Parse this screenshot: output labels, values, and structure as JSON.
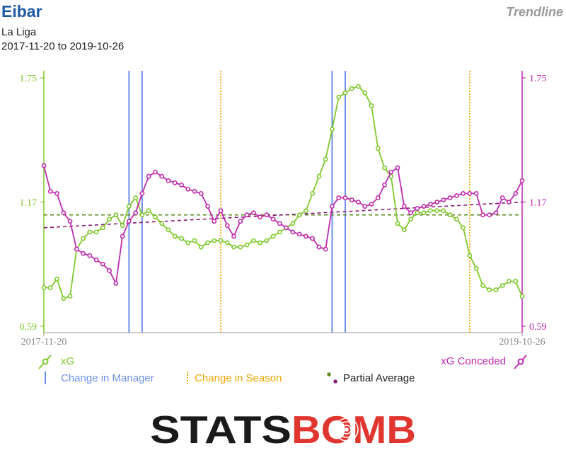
{
  "header": {
    "team": "Eibar",
    "competition": "La Liga",
    "date_range": "2017-11-20 to 2019-10-26",
    "chart_kind": "Trendline"
  },
  "legend": {
    "xg": "xG",
    "xg_conceded": "xG Conceded",
    "manager_change": "Change in Manager",
    "season_change": "Change in Season",
    "partial_average": "Partial Average"
  },
  "logo": {
    "text_left": "STATS",
    "text_right": "BOMB"
  },
  "colors": {
    "xg": "#7fc82c",
    "xg_conceded": "#c02aaf",
    "manager": "#6d8fe8",
    "season": "#f0a500",
    "xg_avg": "#5a8a1a",
    "xgc_avg": "#8a1a7a",
    "logo_dark": "#1a1a1a",
    "logo_red": "#e0362f"
  },
  "chart_data": {
    "type": "line",
    "title": "",
    "x_start_label": "2017-11-20",
    "x_end_label": "2019-10-26",
    "ylim": [
      0.59,
      1.75
    ],
    "y_ticks": [
      0.59,
      1.17,
      1.75
    ],
    "match_count": 74,
    "series": [
      {
        "name": "xG",
        "values": [
          0.77,
          0.77,
          0.81,
          0.72,
          0.73,
          0.95,
          1.0,
          1.03,
          1.03,
          1.05,
          1.09,
          1.11,
          1.06,
          1.15,
          1.19,
          1.11,
          1.13,
          1.1,
          1.07,
          1.04,
          1.01,
          1.0,
          0.98,
          0.99,
          0.96,
          0.98,
          0.99,
          0.99,
          0.98,
          0.96,
          0.96,
          0.97,
          0.99,
          0.98,
          0.99,
          1.01,
          1.03,
          1.05,
          1.07,
          1.11,
          1.13,
          1.21,
          1.29,
          1.37,
          1.51,
          1.66,
          1.68,
          1.7,
          1.71,
          1.68,
          1.62,
          1.42,
          1.33,
          1.29,
          1.07,
          1.04,
          1.09,
          1.12,
          1.12,
          1.13,
          1.13,
          1.13,
          1.11,
          1.09,
          1.05,
          0.92,
          0.86,
          0.78,
          0.76,
          0.76,
          0.78,
          0.8,
          0.8,
          0.73
        ]
      },
      {
        "name": "xG Conceded",
        "values": [
          1.34,
          1.22,
          1.21,
          1.12,
          1.08,
          0.95,
          0.93,
          0.92,
          0.9,
          0.88,
          0.85,
          0.79,
          1.01,
          1.08,
          1.12,
          1.21,
          1.29,
          1.31,
          1.29,
          1.27,
          1.26,
          1.25,
          1.23,
          1.22,
          1.21,
          1.15,
          1.08,
          1.13,
          1.06,
          1.01,
          1.08,
          1.11,
          1.12,
          1.1,
          1.11,
          1.09,
          1.07,
          1.05,
          1.03,
          1.02,
          1.01,
          1.0,
          0.96,
          0.95,
          1.15,
          1.19,
          1.19,
          1.18,
          1.17,
          1.15,
          1.16,
          1.19,
          1.25,
          1.31,
          1.33,
          1.15,
          1.12,
          1.14,
          1.15,
          1.16,
          1.17,
          1.18,
          1.19,
          1.2,
          1.21,
          1.21,
          1.21,
          1.11,
          1.11,
          1.12,
          1.19,
          1.17,
          1.21,
          1.27
        ]
      }
    ],
    "partial_average": {
      "xG": [
        1.11,
        1.11
      ],
      "xG Conceded": [
        1.05,
        1.17
      ]
    },
    "manager_changes": [
      13,
      15,
      44,
      46
    ],
    "season_changes": [
      27,
      65
    ],
    "right_axis_label_xgc": "1.17"
  }
}
